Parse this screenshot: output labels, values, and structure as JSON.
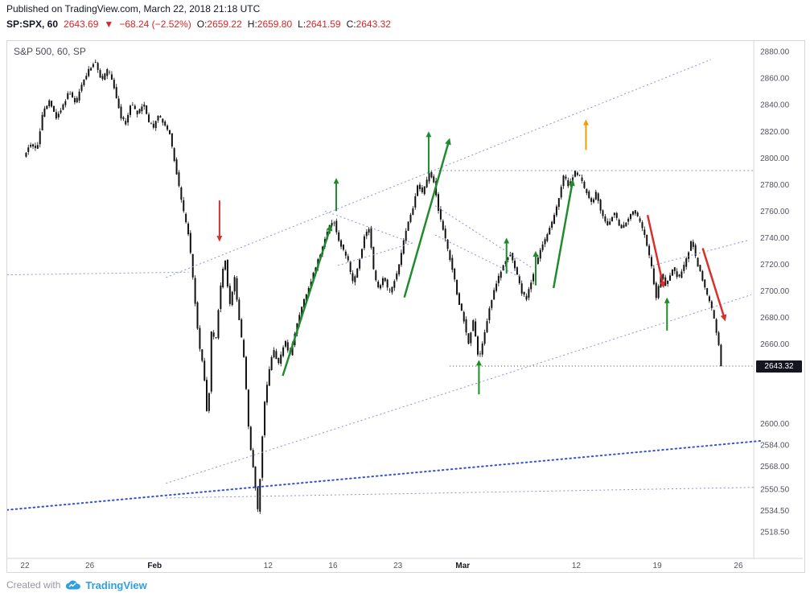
{
  "colors": {
    "down_red": "#d82626",
    "brand_blue": "#2f9fe0"
  },
  "header": {
    "published": "Published on TradingView.com, March 22, 2018 21:18 UTC",
    "symbol": "SP:SPX, 60",
    "last": "2643.69",
    "direction": "▼",
    "change": "−68.24 (−2.52%)",
    "o_label": "O:",
    "o": "2659.22",
    "h_label": "H:",
    "h": "2659.80",
    "l_label": "L:",
    "l": "2641.59",
    "c_label": "C:",
    "c": "2643.32"
  },
  "chart": {
    "title": "S&P 500, 60, SP",
    "price_tag": "2643.32"
  },
  "footer": {
    "created_with": "Created with",
    "brand": "TradingView"
  },
  "chart_data": {
    "type": "candlestick",
    "title": "S&P 500, 60, SP",
    "symbol": "SP:SPX",
    "interval_minutes": 60,
    "last_close": 2643.32,
    "days": 43,
    "bars_per_day": 7,
    "ylim": [
      2498.5,
      2888
    ],
    "xlim_days": [
      -1.09,
      44.95
    ],
    "y_axis_labels": [
      2880,
      2860,
      2840,
      2820,
      2800,
      2780,
      2760,
      2740,
      2720,
      2700,
      2680,
      2660,
      2600,
      2584,
      2568,
      2550.5,
      2534.5,
      2518.5
    ],
    "x_axis_labels": [
      {
        "label": "22",
        "d": 0
      },
      {
        "label": "26",
        "d": 4
      },
      {
        "label": "Feb",
        "d": 8
      },
      {
        "label": "12",
        "d": 15
      },
      {
        "label": "16",
        "d": 19
      },
      {
        "label": "23",
        "d": 23
      },
      {
        "label": "Mar",
        "d": 27
      },
      {
        "label": "12",
        "d": 34
      },
      {
        "label": "19",
        "d": 39
      },
      {
        "label": "26",
        "d": 44
      }
    ],
    "key_points": [
      [
        0,
        2802
      ],
      [
        0.4,
        2810
      ],
      [
        0.8,
        2806
      ],
      [
        1.2,
        2836
      ],
      [
        1.6,
        2843
      ],
      [
        2,
        2830
      ],
      [
        2.4,
        2839
      ],
      [
        2.8,
        2850
      ],
      [
        3.2,
        2841
      ],
      [
        3.6,
        2856
      ],
      [
        4,
        2866
      ],
      [
        4.4,
        2873
      ],
      [
        4.8,
        2858
      ],
      [
        5.2,
        2867
      ],
      [
        5.6,
        2852
      ],
      [
        6,
        2830
      ],
      [
        6.3,
        2826
      ],
      [
        6.6,
        2841
      ],
      [
        7,
        2833
      ],
      [
        7.4,
        2841
      ],
      [
        7.7,
        2827
      ],
      [
        8,
        2823
      ],
      [
        8.3,
        2832
      ],
      [
        8.6,
        2826
      ],
      [
        9,
        2818
      ],
      [
        9.4,
        2790
      ],
      [
        9.8,
        2762
      ],
      [
        10.2,
        2740
      ],
      [
        10.5,
        2700
      ],
      [
        10.8,
        2660
      ],
      [
        11.1,
        2640
      ],
      [
        11.35,
        2598
      ],
      [
        11.6,
        2678
      ],
      [
        11.8,
        2656
      ],
      [
        12.1,
        2700
      ],
      [
        12.4,
        2726
      ],
      [
        12.7,
        2688
      ],
      [
        13,
        2710
      ],
      [
        13.3,
        2676
      ],
      [
        13.6,
        2648
      ],
      [
        13.9,
        2590
      ],
      [
        14.2,
        2562
      ],
      [
        14.45,
        2532
      ],
      [
        14.8,
        2610
      ],
      [
        15.1,
        2638
      ],
      [
        15.4,
        2656
      ],
      [
        15.7,
        2644
      ],
      [
        16.1,
        2663
      ],
      [
        16.4,
        2650
      ],
      [
        16.8,
        2672
      ],
      [
        17.2,
        2690
      ],
      [
        17.6,
        2703
      ],
      [
        18,
        2718
      ],
      [
        18.4,
        2732
      ],
      [
        18.8,
        2747
      ],
      [
        19.1,
        2754
      ],
      [
        19.4,
        2738
      ],
      [
        19.7,
        2731
      ],
      [
        20,
        2722
      ],
      [
        20.3,
        2706
      ],
      [
        20.6,
        2717
      ],
      [
        21,
        2741
      ],
      [
        21.3,
        2747
      ],
      [
        21.6,
        2712
      ],
      [
        21.9,
        2701
      ],
      [
        22.2,
        2712
      ],
      [
        22.5,
        2698
      ],
      [
        22.8,
        2705
      ],
      [
        23.2,
        2722
      ],
      [
        23.6,
        2748
      ],
      [
        24,
        2762
      ],
      [
        24.3,
        2780
      ],
      [
        24.6,
        2773
      ],
      [
        25,
        2789
      ],
      [
        25.3,
        2782
      ],
      [
        25.6,
        2759
      ],
      [
        25.9,
        2744
      ],
      [
        26.2,
        2728
      ],
      [
        26.5,
        2713
      ],
      [
        26.8,
        2692
      ],
      [
        27.1,
        2680
      ],
      [
        27.45,
        2659
      ],
      [
        27.7,
        2679
      ],
      [
        28.05,
        2647
      ],
      [
        28.4,
        2668
      ],
      [
        28.8,
        2691
      ],
      [
        29.2,
        2708
      ],
      [
        29.6,
        2721
      ],
      [
        30,
        2728
      ],
      [
        30.3,
        2717
      ],
      [
        30.7,
        2699
      ],
      [
        31,
        2694
      ],
      [
        31.4,
        2712
      ],
      [
        31.8,
        2729
      ],
      [
        32.2,
        2740
      ],
      [
        32.6,
        2752
      ],
      [
        33,
        2770
      ],
      [
        33.3,
        2787
      ],
      [
        33.6,
        2779
      ],
      [
        34,
        2790
      ],
      [
        34.3,
        2786
      ],
      [
        34.6,
        2777
      ],
      [
        35,
        2766
      ],
      [
        35.3,
        2774
      ],
      [
        35.6,
        2759
      ],
      [
        36,
        2749
      ],
      [
        36.4,
        2759
      ],
      [
        36.8,
        2747
      ],
      [
        37.2,
        2752
      ],
      [
        37.6,
        2761
      ],
      [
        38,
        2752
      ],
      [
        38.3,
        2741
      ],
      [
        38.7,
        2719
      ],
      [
        39,
        2694
      ],
      [
        39.3,
        2713
      ],
      [
        39.6,
        2704
      ],
      [
        40,
        2717
      ],
      [
        40.4,
        2709
      ],
      [
        40.8,
        2721
      ],
      [
        41.2,
        2739
      ],
      [
        41.5,
        2721
      ],
      [
        41.8,
        2711
      ],
      [
        42.1,
        2698
      ],
      [
        42.4,
        2688
      ],
      [
        42.6,
        2677
      ],
      [
        42.86,
        2659.2
      ],
      [
        43,
        2643.32
      ]
    ],
    "style": {
      "candle": "#111111",
      "green": "#1f8b2c",
      "red": "#d8302a",
      "orange": "#f59b00",
      "line_blue": "#8a93da",
      "heavy_blue": "#3050d0",
      "price_line": "#444444"
    },
    "annotations": {
      "price_line": {
        "p": 2643.32,
        "d_from": 26.2,
        "d_to": 44.9
      },
      "trend_lines": [
        {
          "from": [
            8.7,
            2710
          ],
          "to": [
            42.3,
            2874
          ],
          "weight": "thin"
        },
        {
          "from": [
            25.5,
            2790.5
          ],
          "to": [
            44.9,
            2790.5
          ],
          "weight": "thin"
        },
        {
          "from": [
            8.7,
            2555
          ],
          "to": [
            44.8,
            2697
          ],
          "weight": "thin"
        },
        {
          "from": [
            18.5,
            2760
          ],
          "to": [
            23.9,
            2736
          ],
          "weight": "thin"
        },
        {
          "from": [
            19.3,
            2719
          ],
          "to": [
            23.9,
            2736
          ],
          "weight": "thin"
        },
        {
          "from": [
            25.3,
            2764
          ],
          "to": [
            31.3,
            2717
          ],
          "weight": "thin"
        },
        {
          "from": [
            25.3,
            2742
          ],
          "to": [
            30.6,
            2710
          ],
          "weight": "thin"
        },
        {
          "from": [
            38.7,
            2719
          ],
          "to": [
            44.6,
            2738
          ],
          "weight": "thin"
        },
        {
          "from": [
            -1.1,
            2712
          ],
          "to": [
            10.1,
            2714
          ],
          "weight": "thin"
        },
        {
          "from": [
            8.7,
            2544
          ],
          "to": [
            45,
            2552
          ],
          "weight": "thin"
        },
        {
          "from": [
            -1.1,
            2535
          ],
          "to": [
            45.4,
            2587
          ],
          "weight": "heavy"
        }
      ],
      "arrows": [
        {
          "dir": "up",
          "color": "green",
          "d": 19.2,
          "p_from": 2760,
          "p_to": 2785
        },
        {
          "dir": "up",
          "color": "green",
          "d": 24.9,
          "p_from": 2788,
          "p_to": 2820
        },
        {
          "dir": "up",
          "color": "green",
          "d": 28.0,
          "p_from": 2622,
          "p_to": 2648
        },
        {
          "dir": "up",
          "color": "green",
          "d": 29.7,
          "p_from": 2713,
          "p_to": 2740
        },
        {
          "dir": "up",
          "color": "green",
          "d": 31.5,
          "p_from": 2704,
          "p_to": 2730
        },
        {
          "dir": "up",
          "color": "green",
          "d": 39.6,
          "p_from": 2670,
          "p_to": 2695
        },
        {
          "dir": "up",
          "color": "orange",
          "d": 34.6,
          "p_from": 2806,
          "p_to": 2829
        },
        {
          "dir": "down",
          "color": "red",
          "d": 12.0,
          "p_from": 2768,
          "p_to": 2737
        },
        {
          "dir": "diag",
          "color": "green",
          "from": [
            15.9,
            2636
          ],
          "to": [
            18.9,
            2750
          ]
        },
        {
          "dir": "diag",
          "color": "green",
          "from": [
            23.4,
            2695
          ],
          "to": [
            26.2,
            2815
          ]
        },
        {
          "dir": "diag",
          "color": "green",
          "from": [
            32.6,
            2702
          ],
          "to": [
            33.8,
            2784
          ]
        },
        {
          "dir": "diag",
          "color": "red",
          "from": [
            38.4,
            2757
          ],
          "to": [
            39.4,
            2702
          ]
        },
        {
          "dir": "diag",
          "color": "red",
          "from": [
            41.8,
            2732
          ],
          "to": [
            43.2,
            2677
          ]
        }
      ]
    }
  }
}
